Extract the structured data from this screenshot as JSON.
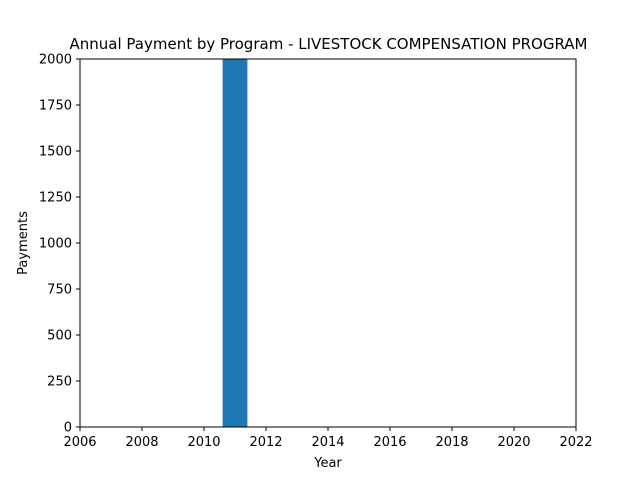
{
  "chart_data": {
    "type": "bar",
    "title": "Annual Payment by Program - LIVESTOCK COMPENSATION PROGRAM",
    "xlabel": "Year",
    "ylabel": "Payments",
    "x": [
      2011
    ],
    "values": [
      2000
    ],
    "bar_color": "#1f77b4",
    "xlim": [
      2006,
      2022
    ],
    "ylim": [
      0,
      2000
    ],
    "xticks": [
      "2006",
      "2008",
      "2010",
      "2012",
      "2014",
      "2016",
      "2018",
      "2020",
      "2022"
    ],
    "yticks": [
      "0",
      "250",
      "500",
      "750",
      "1000",
      "1250",
      "1500",
      "1750",
      "2000"
    ],
    "grid": false,
    "legend": "none"
  }
}
